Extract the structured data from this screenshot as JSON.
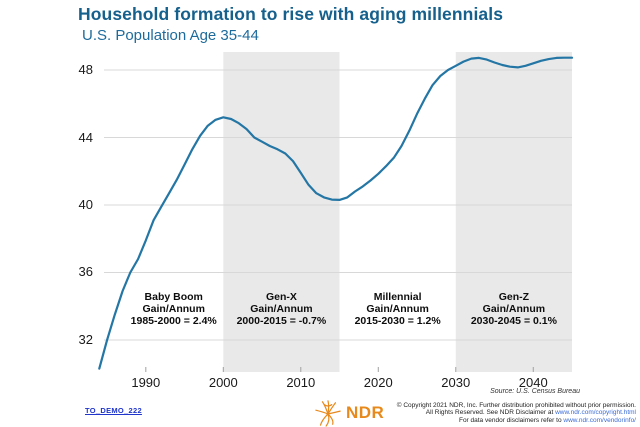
{
  "header": {
    "title": "Household formation to rise with aging millennials",
    "subtitle": "U.S. Population Age 35-44"
  },
  "chart_data": {
    "type": "line",
    "title": "U.S. Population Age 35-44",
    "x_years": {
      "first": 1984,
      "last": 2045,
      "step": 1
    },
    "series": [
      {
        "name": "U.S. Population Age 35-44",
        "values": [
          30.3,
          32.0,
          33.5,
          34.9,
          36.0,
          36.8,
          37.9,
          39.1,
          39.9,
          40.7,
          41.5,
          42.4,
          43.3,
          44.1,
          44.7,
          45.05,
          45.2,
          45.1,
          44.85,
          44.5,
          44.0,
          43.75,
          43.5,
          43.3,
          43.05,
          42.6,
          41.9,
          41.2,
          40.7,
          40.45,
          40.32,
          40.3,
          40.45,
          40.8,
          41.1,
          41.45,
          41.85,
          42.3,
          42.8,
          43.5,
          44.4,
          45.4,
          46.3,
          47.1,
          47.65,
          48.0,
          48.25,
          48.5,
          48.68,
          48.72,
          48.62,
          48.45,
          48.3,
          48.2,
          48.16,
          48.25,
          48.4,
          48.55,
          48.65,
          48.72,
          48.73,
          48.73
        ]
      }
    ],
    "xlim": [
      1983.7,
      2045
    ],
    "ylim": [
      30.1,
      49.07
    ],
    "y_ticks": [
      48,
      44,
      40,
      36,
      32
    ],
    "x_ticks": [
      1990,
      2000,
      2010,
      2020,
      2030,
      2040
    ],
    "grid": "horizontal",
    "legend": "none",
    "bands": [
      {
        "from": 2000,
        "to": 2015
      },
      {
        "from": 2030,
        "to": 2045
      }
    ],
    "annotations": [
      {
        "line1": "Baby Boom",
        "line2": "Gain/Annum",
        "line3": "1985-2000 = 2.4%",
        "center_year": 1993.6
      },
      {
        "line1": "Gen-X",
        "line2": "Gain/Annum",
        "line3": "2000-2015 = -0.7%",
        "center_year": 2007.5
      },
      {
        "line1": "Millennial",
        "line2": "Gain/Annum",
        "line3": "2015-2030 = 1.2%",
        "center_year": 2022.5
      },
      {
        "line1": "Gen-Z",
        "line2": "Gain/Annum",
        "line3": "2030-2045 = 0.1%",
        "center_year": 2037.5
      }
    ],
    "source": "Source: U.S. Census Bureau",
    "colors": {
      "line": "#2476a5",
      "band": "#e9e9e9",
      "grid": "#d8d8d8",
      "tick": "#a0a0a0"
    }
  },
  "footer": {
    "doc_link": "TO_DEMO_222",
    "logo_text": "NDR",
    "copyright": [
      {
        "text": "© Copyright 2021 NDR, Inc. Further distribution prohibited without prior permission.",
        "url": ""
      },
      {
        "text": "All Rights Reserved. See NDR Disclaimer at ",
        "url": "www.ndr.com/copyright.html"
      },
      {
        "text": "For data vendor disclaimers refer to ",
        "url": "www.ndr.com/vendorinfo/"
      }
    ]
  }
}
